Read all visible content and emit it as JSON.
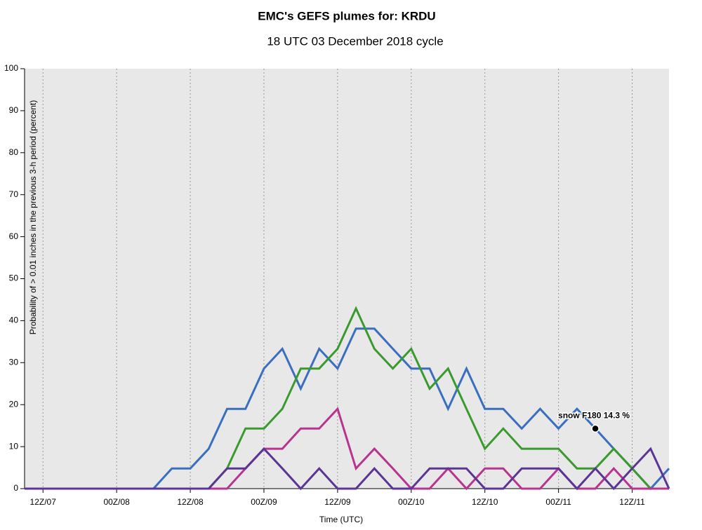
{
  "chart_data": {
    "type": "line",
    "title": "EMC's GEFS plumes for: KRDU",
    "subtitle": "18 UTC 03 December 2018 cycle",
    "y_label": "Probability of > 0.01 inches in the previous 3-h period (percent)",
    "x_label": "Time (UTC)",
    "annotation": "snow F180 14.3 %",
    "categories": [
      null,
      "12Z/07",
      null,
      null,
      null,
      "00Z/08",
      null,
      null,
      null,
      "12Z/08",
      null,
      null,
      null,
      "00Z/09",
      null,
      null,
      null,
      "12Z/09",
      null,
      null,
      null,
      "00Z/10",
      null,
      null,
      null,
      "12Z/10",
      null,
      null,
      null,
      "00Z/11",
      null,
      null,
      null,
      "12Z/11",
      null,
      null
    ],
    "series": [
      {
        "color": "#3a6fc0",
        "values": [
          0,
          0,
          0,
          0,
          0,
          0,
          0,
          0,
          4.8,
          4.8,
          9.5,
          19,
          19,
          28.6,
          33.3,
          23.8,
          33.3,
          28.6,
          38.1,
          38.1,
          33.3,
          28.6,
          28.6,
          19,
          28.6,
          19,
          19,
          14.3,
          19,
          14.3,
          19,
          14.3,
          9.5,
          4.8,
          0,
          4.8
        ]
      },
      {
        "color": "#3a9a2e",
        "values": [
          0,
          0,
          0,
          0,
          0,
          0,
          0,
          0,
          0,
          0,
          0,
          4.8,
          14.3,
          14.3,
          19,
          28.6,
          28.6,
          33.3,
          42.9,
          33.3,
          28.6,
          33.3,
          23.8,
          28.6,
          19,
          9.5,
          14.3,
          9.5,
          9.5,
          9.5,
          4.8,
          4.8,
          9.5,
          4.8,
          0,
          0
        ]
      },
      {
        "color": "#b8348f",
        "values": [
          0,
          0,
          0,
          0,
          0,
          0,
          0,
          0,
          0,
          0,
          0,
          0,
          4.8,
          9.5,
          9.5,
          14.3,
          14.3,
          19,
          4.8,
          9.5,
          4.8,
          0,
          0,
          4.8,
          0,
          4.8,
          4.8,
          0,
          0,
          4.8,
          0,
          0,
          4.8,
          0,
          0,
          0
        ]
      },
      {
        "color": "#5c3594",
        "values": [
          0,
          0,
          0,
          0,
          0,
          0,
          0,
          0,
          0,
          0,
          0,
          4.8,
          4.8,
          9.5,
          4.8,
          0,
          4.8,
          0,
          0,
          4.8,
          0,
          0,
          4.8,
          4.8,
          4.8,
          0,
          0,
          4.8,
          4.8,
          4.8,
          0,
          4.8,
          0,
          4.8,
          9.5,
          0
        ]
      }
    ],
    "annotation_point": {
      "series": 0,
      "index": 31
    },
    "ylim": [
      0,
      100
    ],
    "yticks": [
      0,
      10,
      20,
      30,
      40,
      50,
      60,
      70,
      80,
      90,
      100
    ],
    "grid": "x"
  }
}
